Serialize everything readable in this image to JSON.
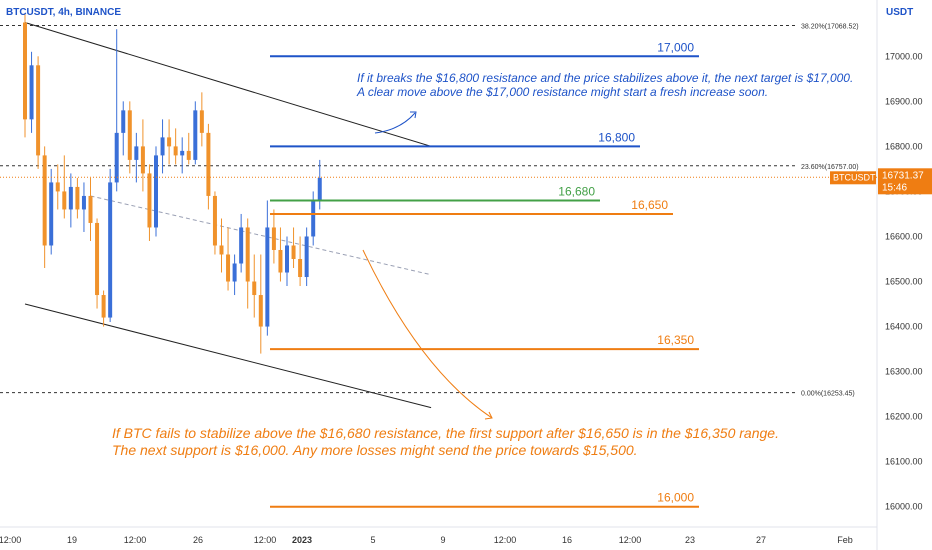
{
  "header": {
    "symbol_title": "BTCUSDT, 4h, BINANCE",
    "currency": "USDT"
  },
  "price_tag": {
    "symbol": "BTCUSDT",
    "price": "16731.37",
    "countdown": "15:46"
  },
  "fib_levels": [
    {
      "label": "38.20%(17068.52)",
      "price": 17068.52
    },
    {
      "label": "23.60%(16757.00)",
      "price": 16757.0
    },
    {
      "label": "0.00%(16253.45)",
      "price": 16253.45
    }
  ],
  "level_lines": [
    {
      "label": "17,000",
      "price": 17000,
      "color": "#1e53c8",
      "x_start": 22,
      "x_end": 36
    },
    {
      "label": "16,800",
      "price": 16800,
      "color": "#1e53c8",
      "x_start": 22,
      "x_end": 33
    },
    {
      "label": "16,680",
      "price": 16680,
      "color": "#43a047",
      "x_start": 22,
      "x_end": 30
    },
    {
      "label": "16,650",
      "price": 16650,
      "color": "#ef7d12",
      "x_start": 22,
      "x_end": 34
    },
    {
      "label": "16,350",
      "price": 16350,
      "color": "#ef7d12",
      "x_start": 22,
      "x_end": 36
    },
    {
      "label": "16,000",
      "price": 16000,
      "color": "#ef7d12",
      "x_start": 22,
      "x_end": 36
    }
  ],
  "annotations": {
    "resistance_text": [
      "If it breaks the $16,800 resistance and the price stabilizes above it, the next target is $17,000.",
      "A clear move above the $17,000 resistance might start a fresh increase soon."
    ],
    "support_text": [
      "If BTC fails to stabilize above the $16,680 resistance, the first support after $16,650 is in the $16,350 range.",
      "The next support is $16,000. Any more losses might send the price towards $15,500."
    ]
  },
  "colors": {
    "blue": "#1e53c8",
    "orange": "#ef7d12",
    "green": "#43a047",
    "candle_up": "#3a6fd8",
    "candle_down": "#f0922b"
  },
  "chart_data": {
    "type": "candlestick",
    "y_axis": {
      "ticks": [
        17000,
        16900,
        16800,
        16700,
        16600,
        16500,
        16400,
        16300,
        16200,
        16100,
        16000
      ],
      "tick_labels": [
        "17000.00",
        "16900.00",
        "16800.00",
        "16700.00",
        "16600.00",
        "16500.00",
        "16400.00",
        "16300.00",
        "16200.00",
        "16100.00",
        "16000.00"
      ],
      "ylim": [
        15955,
        17125
      ]
    },
    "x_axis": {
      "tick_labels": [
        "12:00",
        "19",
        "12:00",
        "26",
        "12:00",
        "2023",
        "5",
        "9",
        "12:00",
        "16",
        "12:00",
        "23",
        "27",
        "Feb"
      ],
      "tick_index": [
        0,
        7,
        16,
        24,
        33,
        45,
        55,
        65,
        75,
        85,
        95,
        105,
        115,
        126
      ]
    },
    "trend_lines": [
      {
        "name": "channel-top",
        "from": [
          0,
          17075
        ],
        "to": [
          62,
          16800
        ]
      },
      {
        "name": "channel-bottom",
        "from": [
          0,
          16450
        ],
        "to": [
          62,
          16220
        ]
      },
      {
        "name": "mid-dashed",
        "from": [
          10,
          16690
        ],
        "to": [
          62,
          16515
        ]
      }
    ],
    "candles": [
      [
        17075,
        17095,
        16820,
        16860
      ],
      [
        16860,
        17010,
        16830,
        16980
      ],
      [
        16980,
        17000,
        16750,
        16780
      ],
      [
        16780,
        16800,
        16530,
        16580
      ],
      [
        16580,
        16750,
        16560,
        16720
      ],
      [
        16720,
        16760,
        16660,
        16700
      ],
      [
        16700,
        16780,
        16640,
        16660
      ],
      [
        16660,
        16740,
        16620,
        16710
      ],
      [
        16710,
        16730,
        16640,
        16660
      ],
      [
        16660,
        16720,
        16610,
        16690
      ],
      [
        16690,
        16730,
        16590,
        16630
      ],
      [
        16630,
        16640,
        16440,
        16470
      ],
      [
        16470,
        16480,
        16400,
        16420
      ],
      [
        16420,
        16750,
        16410,
        16720
      ],
      [
        16720,
        17060,
        16700,
        16830
      ],
      [
        16830,
        16900,
        16780,
        16880
      ],
      [
        16880,
        16900,
        16740,
        16770
      ],
      [
        16770,
        16830,
        16720,
        16800
      ],
      [
        16800,
        16860,
        16700,
        16740
      ],
      [
        16740,
        16760,
        16590,
        16620
      ],
      [
        16620,
        16800,
        16600,
        16780
      ],
      [
        16780,
        16860,
        16740,
        16820
      ],
      [
        16820,
        16860,
        16760,
        16800
      ],
      [
        16800,
        16840,
        16760,
        16780
      ],
      [
        16780,
        16820,
        16740,
        16790
      ],
      [
        16790,
        16830,
        16760,
        16770
      ],
      [
        16770,
        16900,
        16760,
        16880
      ],
      [
        16880,
        16920,
        16800,
        16830
      ],
      [
        16830,
        16850,
        16660,
        16690
      ],
      [
        16690,
        16700,
        16560,
        16580
      ],
      [
        16580,
        16640,
        16520,
        16560
      ],
      [
        16560,
        16620,
        16480,
        16500
      ],
      [
        16500,
        16560,
        16470,
        16540
      ],
      [
        16540,
        16650,
        16520,
        16620
      ],
      [
        16620,
        16640,
        16440,
        16500
      ],
      [
        16500,
        16560,
        16420,
        16470
      ],
      [
        16470,
        16560,
        16340,
        16400
      ],
      [
        16400,
        16680,
        16380,
        16620
      ],
      [
        16620,
        16660,
        16540,
        16570
      ],
      [
        16570,
        16620,
        16500,
        16520
      ],
      [
        16520,
        16600,
        16490,
        16580
      ],
      [
        16580,
        16620,
        16530,
        16550
      ],
      [
        16550,
        16600,
        16490,
        16510
      ],
      [
        16510,
        16620,
        16490,
        16600
      ],
      [
        16600,
        16700,
        16580,
        16680
      ],
      [
        16680,
        16770,
        16660,
        16730
      ]
    ]
  }
}
